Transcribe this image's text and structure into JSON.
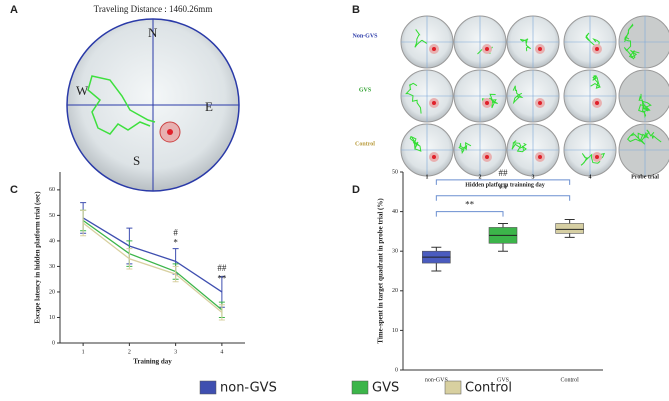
{
  "panel_labels": [
    "A",
    "B",
    "C",
    "D"
  ],
  "maze": {
    "title": "Traveling Distance : 1460.26mm",
    "directions": [
      "N",
      "W",
      "E",
      "S"
    ]
  },
  "trials": {
    "rows": [
      "Non-GVS",
      "GVS",
      "Control"
    ],
    "columns": [
      "1",
      "2",
      "3",
      "4",
      "Probe trial"
    ],
    "x_label": "Hidden platform trainning day"
  },
  "chart_data": [
    {
      "type": "line",
      "x_label": "Training day",
      "y_label": "Escape latency in hidden platform trial (sec)",
      "x": [
        1,
        2,
        3,
        4
      ],
      "xlim": [
        0.5,
        4.5
      ],
      "xticks": [
        1,
        2,
        3,
        4
      ],
      "ylim": [
        0,
        67
      ],
      "yticks": [
        0,
        10,
        20,
        30,
        40,
        50,
        60
      ],
      "series": [
        {
          "name": "non-GVS",
          "color": "#3f4fb0",
          "values": [
            49,
            38,
            32,
            20
          ],
          "errors": [
            6,
            7,
            5,
            6
          ]
        },
        {
          "name": "GVS",
          "color": "#3cb54a",
          "values": [
            48,
            35,
            28,
            13
          ],
          "errors": [
            4,
            5,
            3,
            3
          ]
        },
        {
          "name": "Control",
          "color": "#d8d0a0",
          "values": [
            47,
            33,
            27,
            12
          ],
          "errors": [
            5,
            4,
            3,
            3
          ]
        }
      ],
      "annotations": [
        {
          "x": 3,
          "y": 43,
          "text": "#"
        },
        {
          "x": 3,
          "y": 39,
          "text": "*"
        },
        {
          "x": 4,
          "y": 29,
          "text": "##"
        },
        {
          "x": 4,
          "y": 25,
          "text": "**"
        }
      ]
    },
    {
      "type": "box",
      "y_label": "Time-spent in target quadrant in probe trial (%)",
      "categories": [
        "non-GVS",
        "GVS",
        "Control"
      ],
      "ylim": [
        0,
        50
      ],
      "yticks": [
        0,
        10,
        20,
        30,
        40,
        50
      ],
      "boxes": [
        {
          "color": "#4a5bbf",
          "min": 25,
          "q1": 27,
          "median": 28.5,
          "q3": 30,
          "max": 31
        },
        {
          "color": "#3cb54a",
          "min": 30,
          "q1": 32,
          "median": 34,
          "q3": 36,
          "max": 37
        },
        {
          "color": "#d6cfa3",
          "min": 33.5,
          "q1": 34.5,
          "median": 35.5,
          "q3": 37,
          "max": 38
        }
      ],
      "brackets": [
        {
          "from": 0,
          "to": 1,
          "y": 40,
          "label": "**"
        },
        {
          "from": 0,
          "to": 2,
          "y": 44,
          "label": "**"
        },
        {
          "from": 0,
          "to": 2,
          "y": 48,
          "label": "##"
        }
      ]
    }
  ]
}
